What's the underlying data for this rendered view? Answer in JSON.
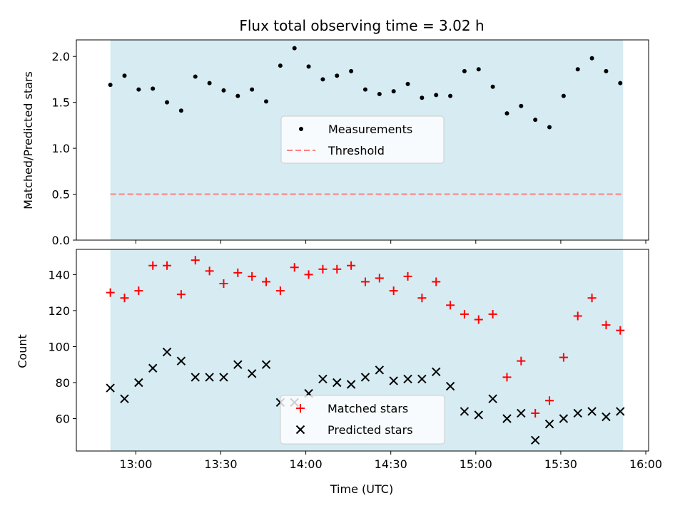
{
  "chart_data": [
    {
      "type": "scatter",
      "title": "Flux total observing time = 3.02 h",
      "xlabel": "",
      "ylabel": "Matched/Predicted stars",
      "ylim": [
        0,
        2.18
      ],
      "yticks": [
        "0.0",
        "0.5",
        "1.0",
        "1.5",
        "2.0"
      ],
      "ytick_values": [
        0,
        0.5,
        1.0,
        1.5,
        2.0
      ],
      "shaded_span": [
        "12:51",
        "15:52"
      ],
      "legend_position": "center",
      "series": [
        {
          "name": "Measurements",
          "marker": "dot",
          "color": "#000000",
          "x": [
            "12:51",
            "12:56",
            "13:01",
            "13:06",
            "13:11",
            "13:16",
            "13:21",
            "13:26",
            "13:31",
            "13:36",
            "13:41",
            "13:46",
            "13:51",
            "13:56",
            "14:01",
            "14:06",
            "14:11",
            "14:16",
            "14:21",
            "14:26",
            "14:31",
            "14:36",
            "14:41",
            "14:46",
            "14:51",
            "14:56",
            "15:01",
            "15:06",
            "15:11",
            "15:16",
            "15:21",
            "15:26",
            "15:31",
            "15:36",
            "15:41",
            "15:46",
            "15:51"
          ],
          "values": [
            1.69,
            1.79,
            1.64,
            1.65,
            1.5,
            1.41,
            1.78,
            1.71,
            1.63,
            1.57,
            1.64,
            1.51,
            1.9,
            2.09,
            1.89,
            1.75,
            1.79,
            1.84,
            1.64,
            1.59,
            1.62,
            1.7,
            1.55,
            1.58,
            1.57,
            1.84,
            1.86,
            1.67,
            1.38,
            1.46,
            1.31,
            1.23,
            1.57,
            1.86,
            1.98,
            1.84,
            1.71
          ]
        },
        {
          "name": "Threshold",
          "style": "dashed",
          "color": "#ff7f7f",
          "value": 0.5
        }
      ]
    },
    {
      "type": "scatter",
      "title": "",
      "xlabel": "Time (UTC)",
      "ylabel": "Count",
      "ylim": [
        42,
        154
      ],
      "yticks": [
        "60",
        "80",
        "100",
        "120",
        "140"
      ],
      "ytick_values": [
        60,
        80,
        100,
        120,
        140
      ],
      "xticks": [
        "13:00",
        "13:30",
        "14:00",
        "14:30",
        "15:00",
        "15:30",
        "16:00"
      ],
      "legend_position": "lower center",
      "series": [
        {
          "name": "Matched stars",
          "marker": "plus",
          "color": "#ff0000",
          "x": [
            "12:51",
            "12:56",
            "13:01",
            "13:06",
            "13:11",
            "13:16",
            "13:21",
            "13:26",
            "13:31",
            "13:36",
            "13:41",
            "13:46",
            "13:51",
            "13:56",
            "14:01",
            "14:06",
            "14:11",
            "14:16",
            "14:21",
            "14:26",
            "14:31",
            "14:36",
            "14:41",
            "14:46",
            "14:51",
            "14:56",
            "15:01",
            "15:06",
            "15:11",
            "15:16",
            "15:21",
            "15:26",
            "15:31",
            "15:36",
            "15:41",
            "15:46",
            "15:51"
          ],
          "values": [
            130,
            127,
            131,
            145,
            145,
            129,
            148,
            142,
            135,
            141,
            139,
            136,
            131,
            144,
            140,
            143,
            143,
            145,
            136,
            138,
            131,
            139,
            127,
            136,
            123,
            118,
            115,
            118,
            83,
            92,
            63,
            70,
            94,
            117,
            127,
            112,
            109
          ]
        },
        {
          "name": "Predicted stars",
          "marker": "x",
          "color": "#000000",
          "x": [
            "12:51",
            "12:56",
            "13:01",
            "13:06",
            "13:11",
            "13:16",
            "13:21",
            "13:26",
            "13:31",
            "13:36",
            "13:41",
            "13:46",
            "13:51",
            "13:56",
            "14:01",
            "14:06",
            "14:11",
            "14:16",
            "14:21",
            "14:26",
            "14:31",
            "14:36",
            "14:41",
            "14:46",
            "14:51",
            "14:56",
            "15:01",
            "15:06",
            "15:11",
            "15:16",
            "15:21",
            "15:26",
            "15:31",
            "15:36",
            "15:41",
            "15:46",
            "15:51"
          ],
          "values": [
            77,
            71,
            80,
            88,
            97,
            92,
            83,
            83,
            83,
            90,
            85,
            90,
            69,
            69,
            74,
            82,
            80,
            79,
            83,
            87,
            81,
            82,
            82,
            86,
            78,
            64,
            62,
            71,
            60,
            63,
            48,
            57,
            60,
            63,
            64,
            61,
            64
          ]
        }
      ]
    }
  ],
  "colors": {
    "span": "#add8e6",
    "axis": "#000000"
  }
}
